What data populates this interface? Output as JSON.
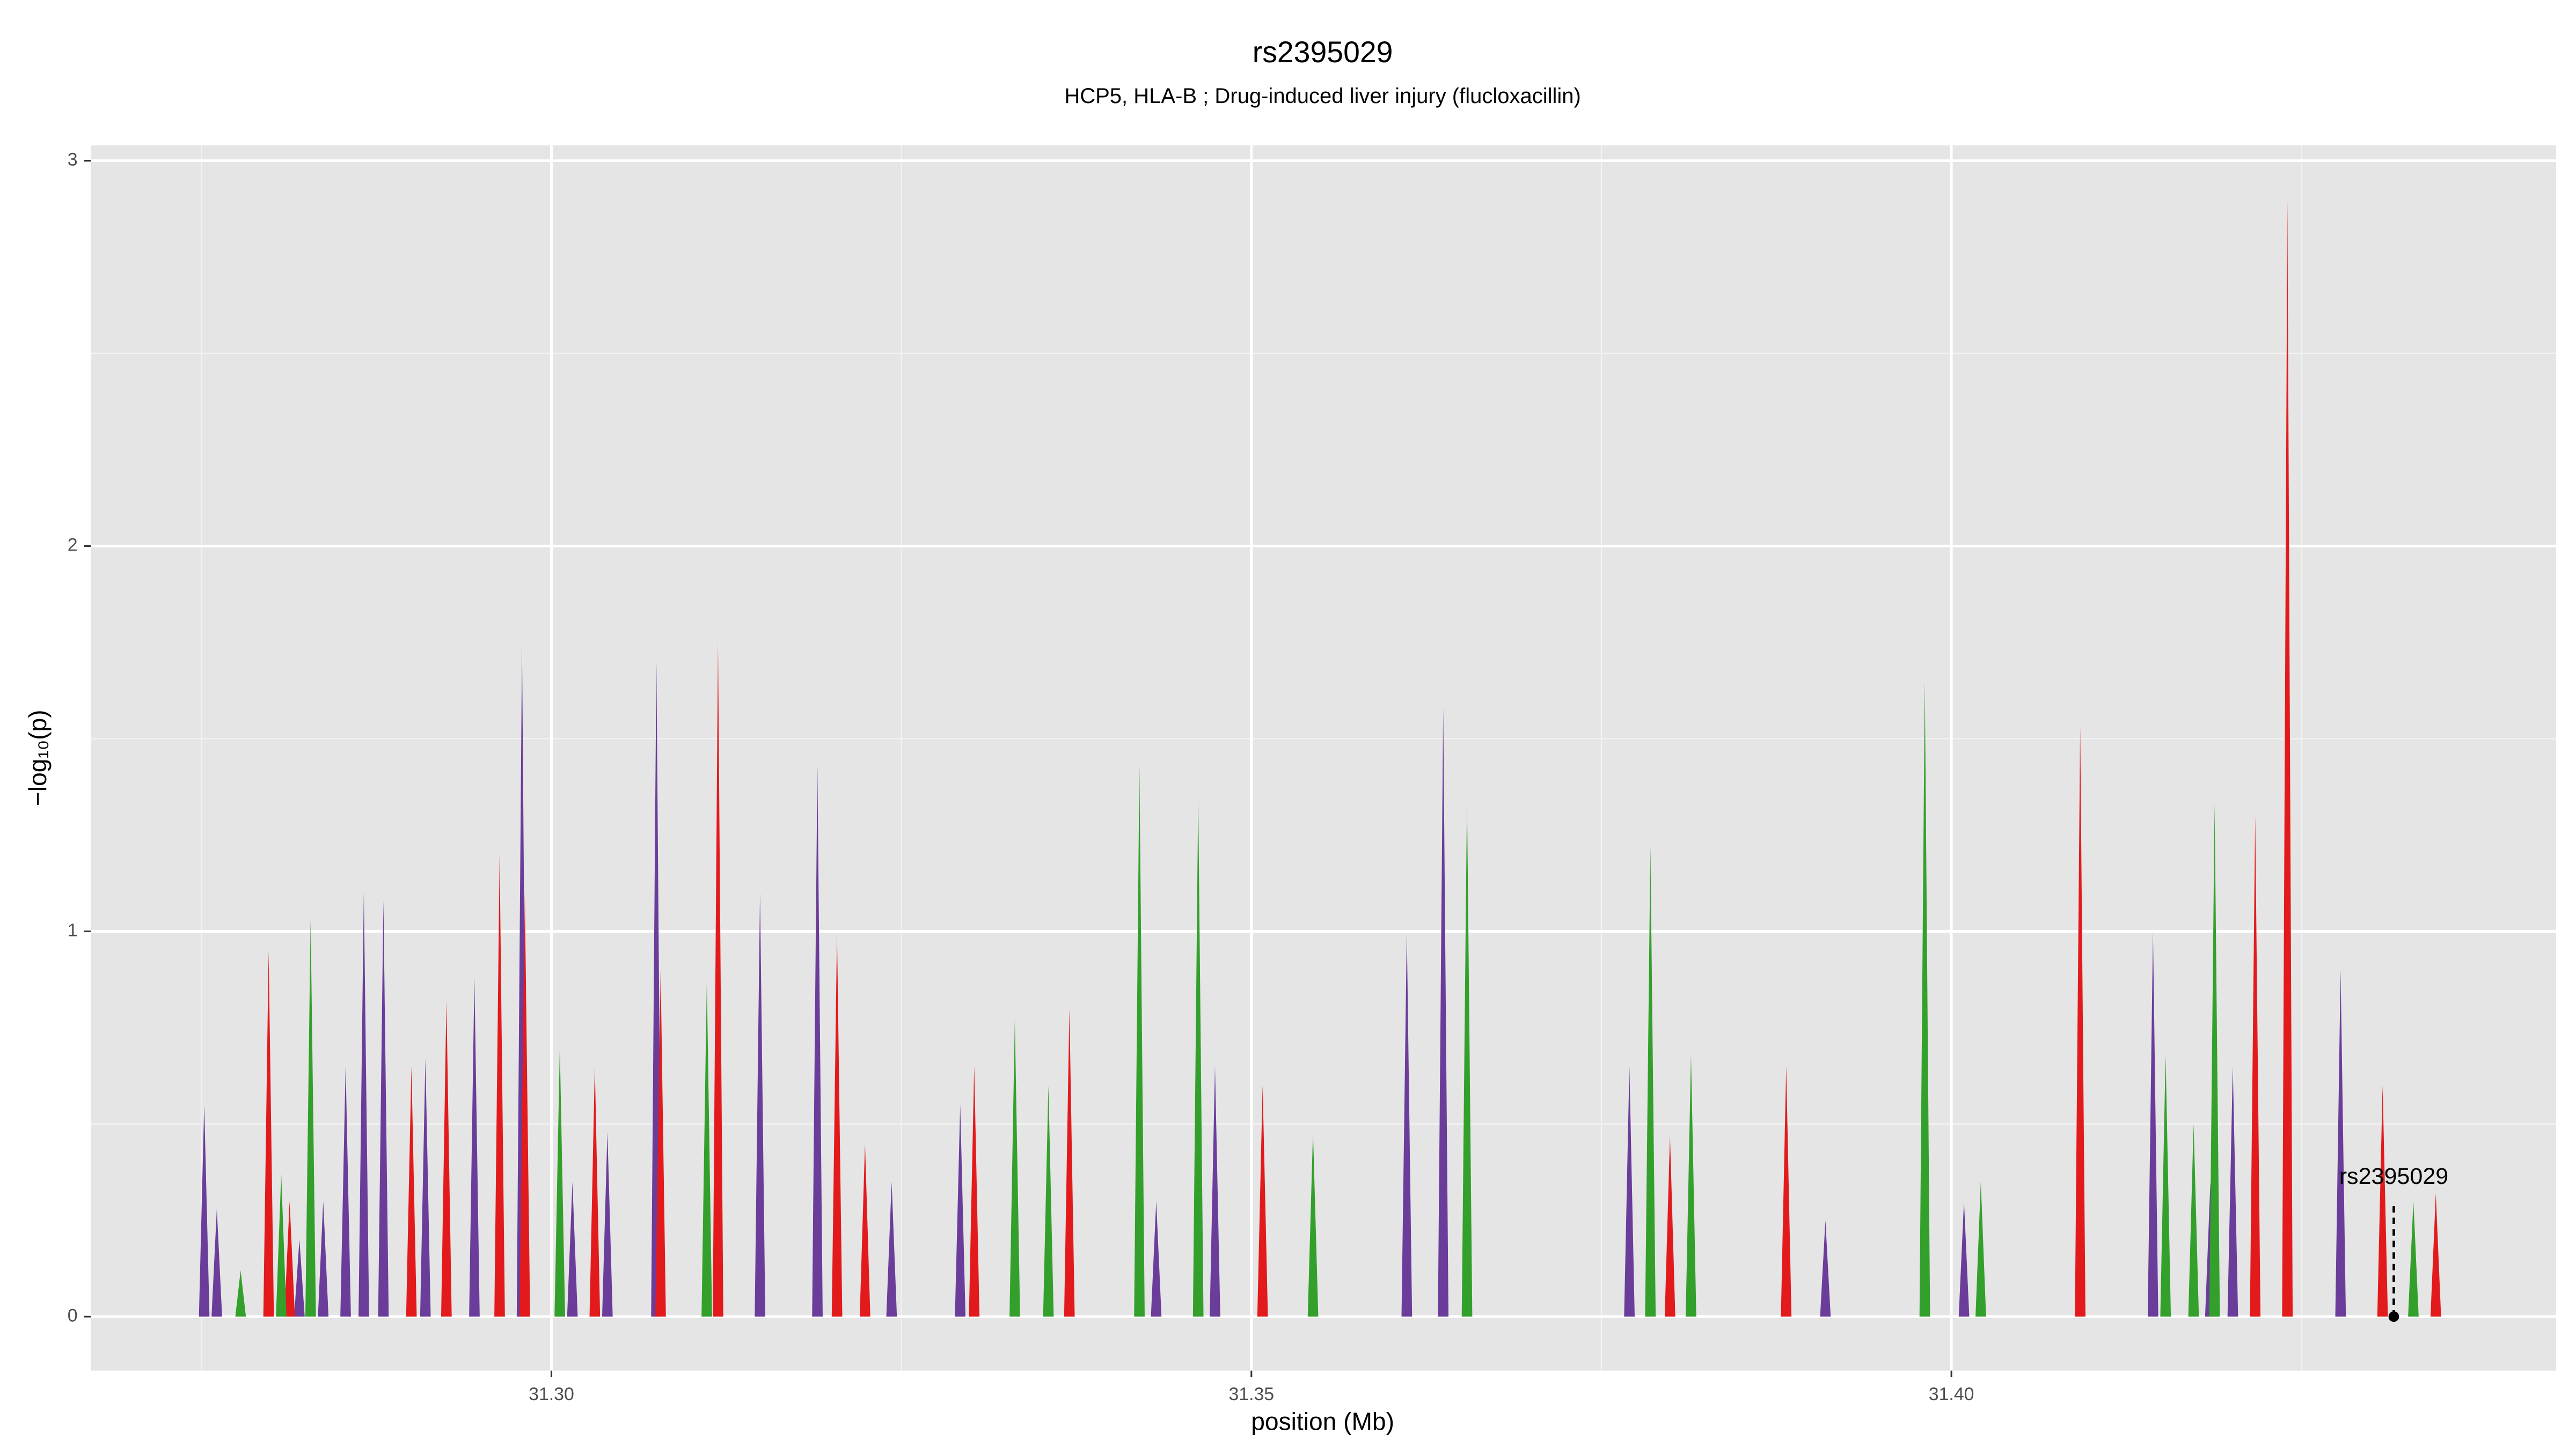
{
  "chart_data": {
    "type": "area",
    "title": "rs2395029",
    "subtitle": "HCP5, HLA-B ; Drug-induced liver injury (flucloxacillin)",
    "xlabel": "position (Mb)",
    "ylabel": "−log₁₀(p)",
    "xlim": [
      31.2671,
      31.4432
    ],
    "ylim": [
      -0.14,
      3.04
    ],
    "xticks": [
      {
        "value": 31.3,
        "label": "31.30"
      },
      {
        "value": 31.35,
        "label": "31.35"
      },
      {
        "value": 31.4,
        "label": "31.40"
      }
    ],
    "yticks": [
      0,
      1,
      2,
      3
    ],
    "grid": true,
    "series": [
      {
        "color": "#6a3d9a",
        "x": [
          31.2752,
          31.2761,
          31.282,
          31.2837,
          31.2853,
          31.2866,
          31.288,
          31.291,
          31.2945,
          31.2979,
          31.3015,
          31.304,
          31.3075,
          31.3149,
          31.319,
          31.3243,
          31.3292,
          31.3432,
          31.3474,
          31.3611,
          31.3637,
          31.377,
          31.391,
          31.4009,
          31.4144,
          31.4185,
          31.4201,
          31.4278
        ],
        "values": [
          0.55,
          0.28,
          0.2,
          0.3,
          0.65,
          1.1,
          1.08,
          0.67,
          0.88,
          1.75,
          0.35,
          0.48,
          1.7,
          1.1,
          1.43,
          0.35,
          0.55,
          0.3,
          0.65,
          1.0,
          1.58,
          0.65,
          0.25,
          0.3,
          1.0,
          0.35,
          0.65,
          0.9
        ]
      },
      {
        "color": "#e31a1c",
        "x": [
          31.2798,
          31.2813,
          31.29,
          31.2925,
          31.2963,
          31.2981,
          31.3031,
          31.3078,
          31.3119,
          31.3204,
          31.3224,
          31.3302,
          31.337,
          31.3508,
          31.3799,
          31.3882,
          31.4092,
          31.4217,
          31.424,
          31.4308,
          31.4346
        ],
        "values": [
          0.95,
          0.3,
          0.65,
          0.82,
          1.2,
          1.1,
          0.65,
          0.9,
          1.75,
          1.0,
          0.45,
          0.65,
          0.8,
          0.6,
          0.47,
          0.65,
          1.53,
          1.3,
          2.9,
          0.6,
          0.32
        ]
      },
      {
        "color": "#33a02c",
        "x": [
          31.2778,
          31.2807,
          31.2828,
          31.3006,
          31.3111,
          31.3331,
          31.3355,
          31.342,
          31.3462,
          31.3544,
          31.3654,
          31.3785,
          31.3814,
          31.3981,
          31.4021,
          31.4153,
          31.4173,
          31.4188,
          31.433
        ],
        "values": [
          0.12,
          0.37,
          1.03,
          0.7,
          0.87,
          0.77,
          0.6,
          1.43,
          1.35,
          0.48,
          1.35,
          1.22,
          0.68,
          1.65,
          0.35,
          0.68,
          0.5,
          1.33,
          0.3
        ]
      }
    ],
    "annotations": [
      {
        "text": "rs2395029",
        "x": 31.4316,
        "y": 0
      }
    ]
  }
}
